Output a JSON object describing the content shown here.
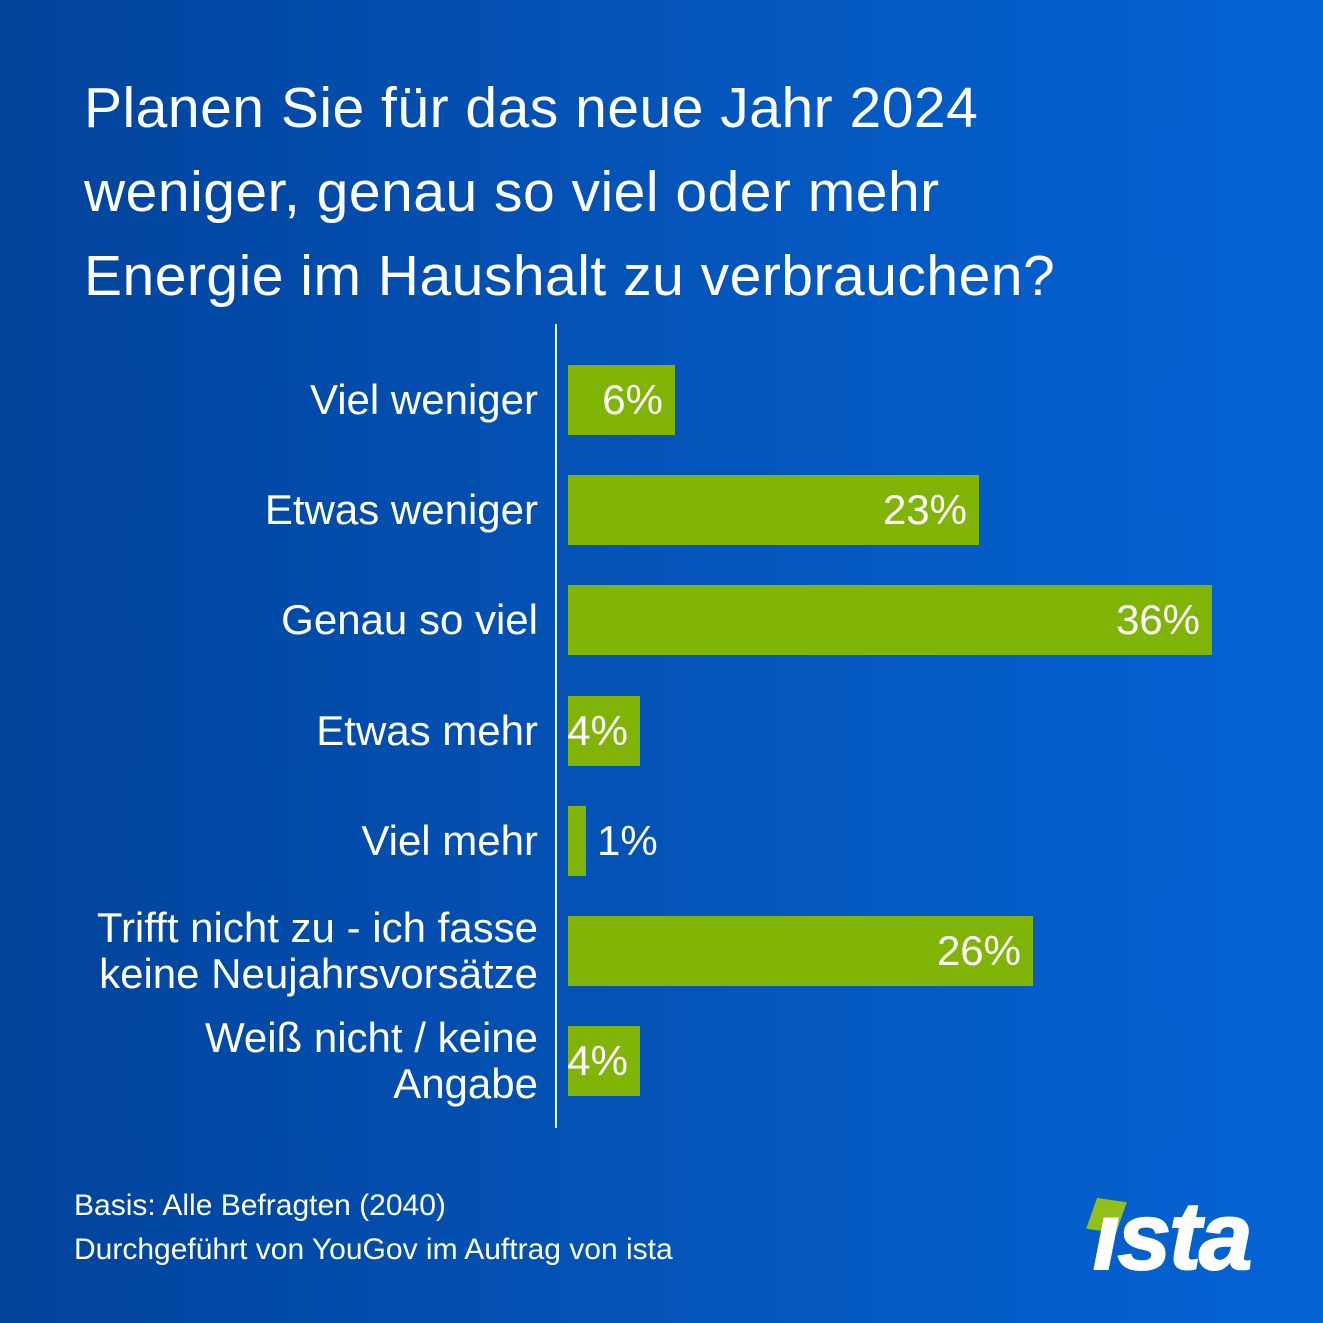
{
  "title": "Planen Sie für das neue Jahr 2024\nweniger, genau so viel oder mehr\nEnergie im Haushalt zu verbrauchen?",
  "chart_data": {
    "type": "bar",
    "orientation": "horizontal",
    "title": "Planen Sie für das neue Jahr 2024 weniger, genau so viel oder mehr Energie im Haushalt zu verbrauchen?",
    "categories": [
      "Viel weniger",
      "Etwas weniger",
      "Genau so viel",
      "Etwas mehr",
      "Viel mehr",
      "Trifft nicht zu - ich fasse\nkeine Neujahrsvorsätze",
      "Weiß nicht / keine Angabe"
    ],
    "values": [
      6,
      23,
      36,
      4,
      1,
      26,
      4
    ],
    "value_labels": [
      "6%",
      "23%",
      "36%",
      "4%",
      "1%",
      "26%",
      "4%"
    ],
    "value_label_positions": [
      "inside",
      "inside",
      "inside",
      "inside",
      "outside",
      "inside",
      "inside"
    ],
    "unit": "%",
    "xlim": [
      0,
      36
    ],
    "grid": false,
    "legend": false,
    "bar_color": "#80B406",
    "axis_color": "#EFF5FB"
  },
  "footer": {
    "line1": "Basis: Alle Befragten (2040)",
    "line2": "Durchgeführt von YouGov im Auftrag von ista"
  },
  "logo": {
    "text": "ista",
    "diamond_color": "#92BF1B"
  },
  "colors": {
    "background_left": "#02439B",
    "background_right": "#0564D5",
    "bar": "#80B406",
    "text": "#FFFFFF"
  }
}
